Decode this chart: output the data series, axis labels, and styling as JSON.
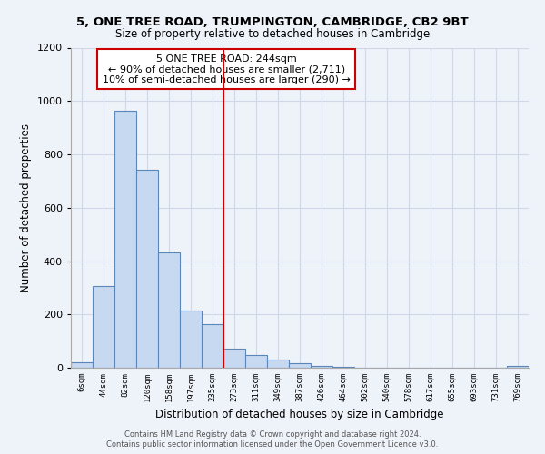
{
  "title": "5, ONE TREE ROAD, TRUMPINGTON, CAMBRIDGE, CB2 9BT",
  "subtitle": "Size of property relative to detached houses in Cambridge",
  "xlabel": "Distribution of detached houses by size in Cambridge",
  "ylabel": "Number of detached properties",
  "bin_labels": [
    "6sqm",
    "44sqm",
    "82sqm",
    "120sqm",
    "158sqm",
    "197sqm",
    "235sqm",
    "273sqm",
    "311sqm",
    "349sqm",
    "387sqm",
    "426sqm",
    "464sqm",
    "502sqm",
    "540sqm",
    "578sqm",
    "617sqm",
    "655sqm",
    "693sqm",
    "731sqm",
    "769sqm"
  ],
  "bar_values": [
    20,
    308,
    962,
    743,
    433,
    213,
    163,
    70,
    47,
    32,
    18,
    8,
    3,
    1,
    1,
    0,
    0,
    0,
    0,
    0,
    7
  ],
  "bar_color": "#c6d9f1",
  "bar_edge_color": "#5b86b8",
  "vline_x_index": 6.5,
  "vline_color": "#cc0000",
  "annotation_title": "5 ONE TREE ROAD: 244sqm",
  "annotation_line1": "← 90% of detached houses are smaller (2,711)",
  "annotation_line2": "10% of semi-detached houses are larger (290) →",
  "annotation_box_color": "#ffffff",
  "annotation_box_edge": "#cc0000",
  "ylim": [
    0,
    1200
  ],
  "yticks": [
    0,
    200,
    400,
    600,
    800,
    1000,
    1200
  ],
  "footer_line1": "Contains HM Land Registry data © Crown copyright and database right 2024.",
  "footer_line2": "Contains public sector information licensed under the Open Government Licence v3.0.",
  "bg_color": "#eef2f9",
  "grid_color": "#d0d8e8"
}
